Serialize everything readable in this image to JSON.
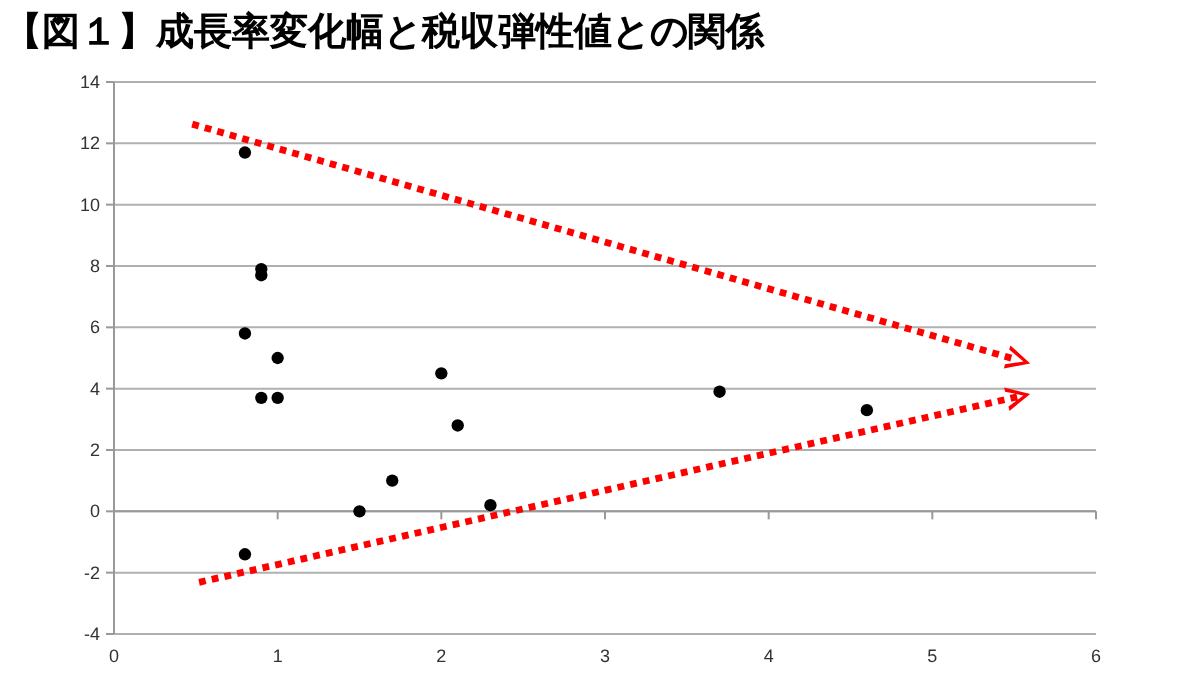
{
  "chart_data": {
    "type": "scatter",
    "title": "【図１】成長率変化幅と税収弾性値との関係",
    "x": [
      0.8,
      0.9,
      0.9,
      0.8,
      1.0,
      0.9,
      1.0,
      2.0,
      2.1,
      1.7,
      1.5,
      2.3,
      0.8,
      3.7,
      4.6
    ],
    "values": [
      11.7,
      7.9,
      7.7,
      5.8,
      5.0,
      3.7,
      3.7,
      4.5,
      2.8,
      1.0,
      0,
      0.2,
      -1.4,
      3.9,
      3.3
    ],
    "color": "#000000",
    "marker": "circle",
    "xlim": [
      0,
      6
    ],
    "xticks": [
      0,
      1,
      2,
      3,
      4,
      5,
      6
    ],
    "ylim": [
      -4,
      14
    ],
    "yticks": [
      -4,
      -2,
      0,
      2,
      4,
      6,
      8,
      10,
      12,
      14
    ],
    "grid": "y",
    "legend": false
  }
}
